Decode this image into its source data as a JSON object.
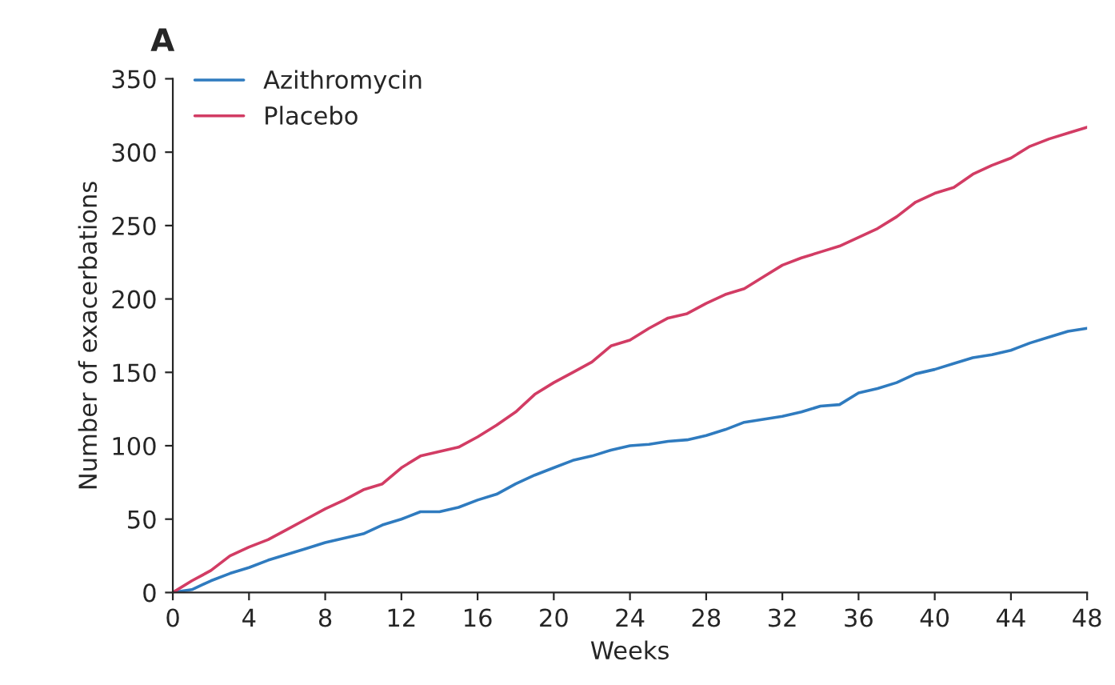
{
  "chart_data": {
    "type": "line",
    "xlabel": "Weeks",
    "ylabel": "Number of exacerbations",
    "annotations": [
      "A"
    ],
    "x": [
      0,
      1,
      2,
      3,
      4,
      5,
      6,
      7,
      8,
      9,
      10,
      11,
      12,
      13,
      14,
      15,
      16,
      17,
      18,
      19,
      20,
      21,
      22,
      23,
      24,
      25,
      26,
      27,
      28,
      29,
      30,
      31,
      32,
      33,
      34,
      35,
      36,
      37,
      38,
      39,
      40,
      41,
      42,
      43,
      44,
      45,
      46,
      47,
      48
    ],
    "series": [
      {
        "name": "Azithromycin",
        "color": "#2f7bbf",
        "values": [
          0,
          2,
          8,
          13,
          17,
          22,
          26,
          30,
          34,
          37,
          40,
          46,
          50,
          55,
          55,
          58,
          63,
          67,
          74,
          80,
          85,
          90,
          93,
          97,
          100,
          101,
          103,
          104,
          107,
          111,
          116,
          118,
          120,
          123,
          127,
          128,
          136,
          139,
          143,
          149,
          152,
          156,
          160,
          162,
          165,
          170,
          174,
          178,
          180
        ]
      },
      {
        "name": "Placebo",
        "color": "#d23c64",
        "values": [
          0,
          8,
          15,
          25,
          31,
          36,
          43,
          50,
          57,
          63,
          70,
          74,
          85,
          93,
          96,
          99,
          106,
          114,
          123,
          135,
          143,
          150,
          157,
          168,
          172,
          180,
          187,
          190,
          197,
          203,
          207,
          215,
          223,
          228,
          232,
          236,
          242,
          248,
          256,
          266,
          272,
          276,
          285,
          291,
          296,
          304,
          309,
          313,
          317
        ]
      }
    ],
    "xlim": [
      0,
      48
    ],
    "xticks": [
      0,
      4,
      8,
      12,
      16,
      20,
      24,
      28,
      32,
      36,
      40,
      44,
      48
    ],
    "ylim": [
      0,
      350
    ],
    "yticks": [
      0,
      50,
      100,
      150,
      200,
      250,
      300,
      350
    ],
    "grid": false,
    "legend": "top left",
    "marker": "none",
    "line_style": "solid"
  }
}
